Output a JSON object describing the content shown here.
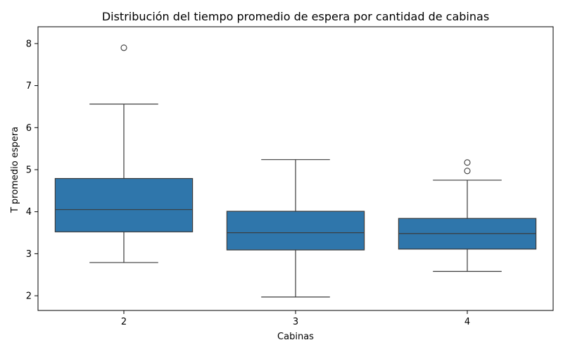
{
  "chart_data": {
    "type": "box",
    "title": "Distribución del tiempo promedio de espera por cantidad de cabinas",
    "xlabel": "Cabinas",
    "ylabel": "T promedio espera",
    "ylim": [
      1.65,
      8.4
    ],
    "yticks": [
      "2",
      "3",
      "4",
      "5",
      "6",
      "7",
      "8"
    ],
    "grid": false,
    "box_color": "#2f76ab",
    "line_color": "#3b3b3b",
    "categories": [
      "2",
      "3",
      "4"
    ],
    "boxes": [
      {
        "category": "2",
        "whisker_low": 2.79,
        "q1": 3.52,
        "median": 4.05,
        "q3": 4.79,
        "whisker_high": 6.56,
        "outliers": [
          7.9
        ]
      },
      {
        "category": "3",
        "whisker_low": 1.97,
        "q1": 3.09,
        "median": 3.5,
        "q3": 4.01,
        "whisker_high": 5.24,
        "outliers": []
      },
      {
        "category": "4",
        "whisker_low": 2.58,
        "q1": 3.11,
        "median": 3.48,
        "q3": 3.84,
        "whisker_high": 4.75,
        "outliers": [
          4.97,
          5.17
        ]
      }
    ]
  }
}
